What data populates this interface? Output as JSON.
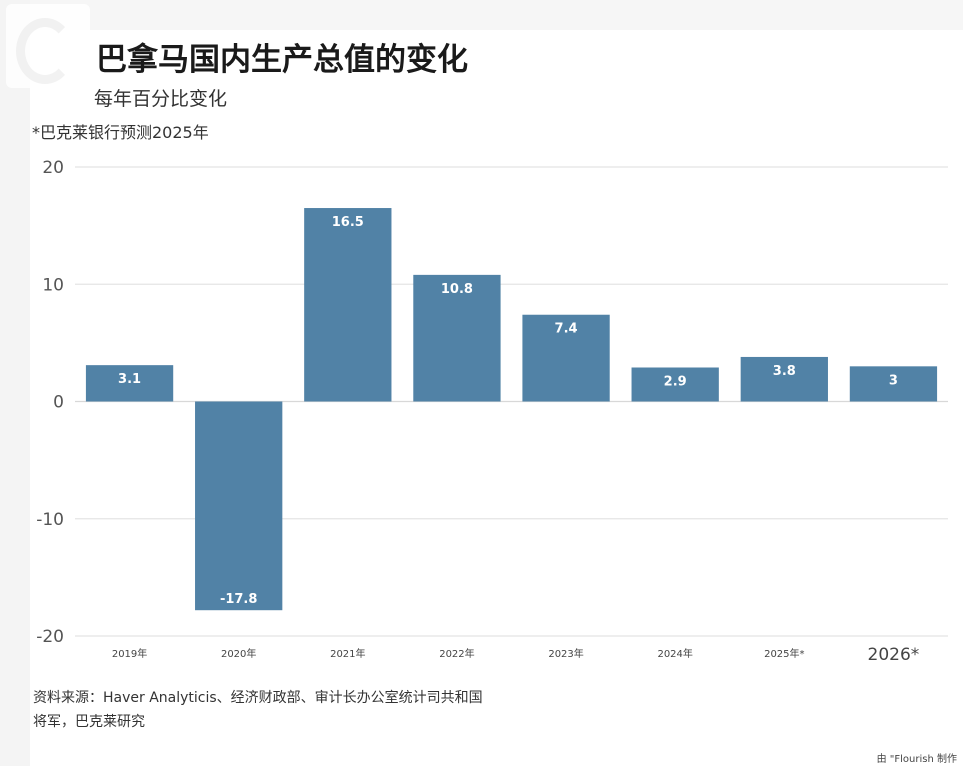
{
  "title": "巴拿马国内生产总值的变化",
  "subtitle": "每年百分比变化",
  "note": "*巴克莱银行预测2025年",
  "source": "资料来源：Haver Analyticis、经济财政部、审计长办公室统计司共和国将军，巴克莱研究",
  "credit": "由 \"Flourish 制作",
  "colors": {
    "bar": "#5182a6",
    "grid": "#e4e4e4",
    "zero_line": "#d8d8d8",
    "label": "#ffffff"
  },
  "chart_data": {
    "type": "bar",
    "title": "巴拿马国内生产总值的变化",
    "subtitle": "每年百分比变化",
    "categories": [
      "2019年",
      "2020年",
      "2021年",
      "2022年",
      "2023年",
      "2024年",
      "2025年*",
      "2026*"
    ],
    "values": [
      3.1,
      -17.8,
      16.5,
      10.8,
      7.4,
      2.9,
      3.8,
      3
    ],
    "value_labels": [
      "3.1",
      "-17.8",
      "16.5",
      "10.8",
      "7.4",
      "2.9",
      "3.8",
      "3"
    ],
    "ylim": [
      -20,
      20
    ],
    "yticks": [
      20,
      10,
      0,
      -10,
      -20
    ],
    "xlabel": "",
    "ylabel": "",
    "grid": true,
    "legend": "none"
  }
}
